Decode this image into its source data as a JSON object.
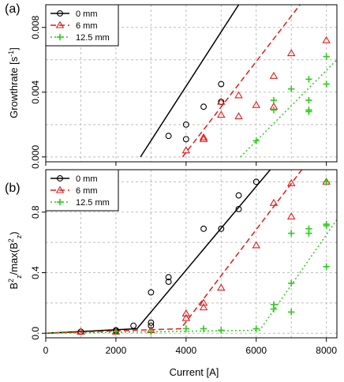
{
  "colors": {
    "black": "#000000",
    "red": "#e31a1c",
    "green": "#2ecc1a",
    "grid": "#bfbfbf"
  },
  "chart_data": [
    {
      "panel_label": "(a)",
      "type": "scatter",
      "ylabel": "Growthrate [s",
      "ylabel_sup": "-1",
      "ylabel_end": "]",
      "xlim": [
        0,
        8300
      ],
      "ylim": [
        -0.0003,
        0.0094
      ],
      "x_ticks": [
        0,
        2000,
        4000,
        6000,
        8000
      ],
      "y_ticks": [
        0.0,
        0.004,
        0.008
      ],
      "y_tick_labels": [
        "0.000",
        "0.004",
        "0.008"
      ],
      "grid": true,
      "legend": {
        "placement": "top-left",
        "entries": [
          "0 mm",
          "6 mm",
          "12.5 mm"
        ]
      },
      "series": [
        {
          "name": "0 mm",
          "color": "black",
          "marker": "circle",
          "line": "solid",
          "points": [
            [
              3500,
              0.0013
            ],
            [
              4000,
              0.002
            ],
            [
              4000,
              0.0011
            ],
            [
              4500,
              0.0031
            ],
            [
              5000,
              0.0045
            ],
            [
              5000,
              0.0034
            ]
          ],
          "fit": [
            [
              2700,
              0.0
            ],
            [
              5500,
              0.0094
            ]
          ]
        },
        {
          "name": "6 mm",
          "color": "red",
          "marker": "triangle",
          "line": "dashed",
          "points": [
            [
              4000,
              0.0004
            ],
            [
              4500,
              0.0012
            ],
            [
              4500,
              0.0011
            ],
            [
              5000,
              0.0034
            ],
            [
              5000,
              0.0026
            ],
            [
              5500,
              0.0038
            ],
            [
              5500,
              0.0025
            ],
            [
              6000,
              0.0032
            ],
            [
              6500,
              0.005
            ],
            [
              6500,
              0.0031
            ],
            [
              7000,
              0.0064
            ],
            [
              8000,
              0.0072
            ]
          ],
          "fit": [
            [
              3900,
              0.0
            ],
            [
              7250,
              0.0094
            ]
          ]
        },
        {
          "name": "12.5 mm",
          "color": "green",
          "marker": "plus",
          "line": "dotted",
          "points": [
            [
              6000,
              0.001
            ],
            [
              6500,
              0.0035
            ],
            [
              6500,
              0.0029
            ],
            [
              7000,
              0.0042
            ],
            [
              7500,
              0.0048
            ],
            [
              7500,
              0.0035
            ],
            [
              7500,
              0.0029
            ],
            [
              7500,
              0.0028
            ],
            [
              8000,
              0.0062
            ],
            [
              8000,
              0.0045
            ]
          ],
          "fit": [
            [
              5550,
              0.0
            ],
            [
              8300,
              0.006
            ]
          ]
        }
      ]
    },
    {
      "panel_label": "(b)",
      "type": "scatter",
      "xlabel": "Current [A]",
      "ylabel": "B_z^2/max(B_z^2)",
      "xlim": [
        0,
        8300
      ],
      "ylim": [
        -0.03,
        1.08
      ],
      "x_ticks": [
        0,
        2000,
        4000,
        6000,
        8000
      ],
      "x_tick_labels": [
        "0",
        "2000",
        "4000",
        "6000",
        "8000"
      ],
      "y_ticks": [
        0.0,
        0.4,
        0.8
      ],
      "y_tick_labels": [
        "0.0",
        "0.4",
        "0.8"
      ],
      "grid": true,
      "legend": {
        "placement": "top-left",
        "entries": [
          "0 mm",
          "6 mm",
          "12.5 mm"
        ]
      },
      "series": [
        {
          "name": "0 mm",
          "color": "black",
          "marker": "circle",
          "line": "solid",
          "points": [
            [
              1000,
              0.01
            ],
            [
              2000,
              0.02
            ],
            [
              2000,
              0.015
            ],
            [
              2500,
              0.05
            ],
            [
              3000,
              0.27
            ],
            [
              3000,
              0.07
            ],
            [
              3000,
              0.05
            ],
            [
              3500,
              0.37
            ],
            [
              3500,
              0.34
            ],
            [
              4500,
              0.69
            ],
            [
              5000,
              0.69
            ],
            [
              5500,
              0.91
            ],
            [
              5500,
              0.82
            ],
            [
              6000,
              1.0
            ]
          ],
          "fit": [
            [
              0,
              0.0
            ],
            [
              2600,
              0.03
            ],
            [
              6400,
              1.08
            ]
          ]
        },
        {
          "name": "6 mm",
          "color": "red",
          "marker": "triangle",
          "line": "dashed",
          "points": [
            [
              1000,
              0.01
            ],
            [
              2000,
              0.01
            ],
            [
              3000,
              0.02
            ],
            [
              4000,
              0.13
            ],
            [
              4000,
              0.1
            ],
            [
              4500,
              0.2
            ],
            [
              4500,
              0.17
            ],
            [
              5000,
              0.3
            ],
            [
              6000,
              0.58
            ],
            [
              6500,
              0.86
            ],
            [
              7000,
              0.99
            ],
            [
              7000,
              0.77
            ],
            [
              8000,
              1.0
            ]
          ],
          "fit": [
            [
              0,
              0.0
            ],
            [
              3850,
              0.03
            ],
            [
              7300,
              1.08
            ]
          ]
        },
        {
          "name": "12.5 mm",
          "color": "green",
          "marker": "plus",
          "line": "dotted",
          "points": [
            [
              2000,
              0.01
            ],
            [
              3000,
              0.01
            ],
            [
              4000,
              0.03
            ],
            [
              4500,
              0.03
            ],
            [
              5000,
              0.02
            ],
            [
              6000,
              0.03
            ],
            [
              6500,
              0.19
            ],
            [
              6500,
              0.16
            ],
            [
              7000,
              0.66
            ],
            [
              7000,
              0.33
            ],
            [
              7000,
              0.14
            ],
            [
              7500,
              0.69
            ],
            [
              7500,
              0.66
            ],
            [
              8000,
              1.0
            ],
            [
              8000,
              0.72
            ],
            [
              8000,
              0.71
            ],
            [
              8000,
              0.44
            ]
          ],
          "fit": [
            [
              0,
              0.0
            ],
            [
              6100,
              0.02
            ],
            [
              8300,
              0.75
            ]
          ]
        }
      ]
    }
  ]
}
